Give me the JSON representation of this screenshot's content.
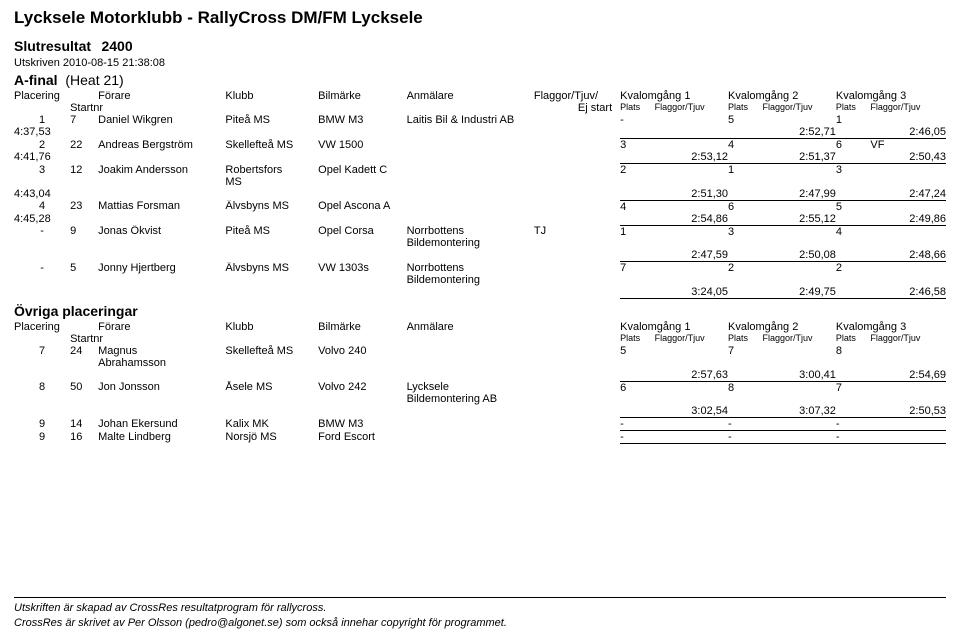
{
  "header": {
    "title": "Lycksele Motorklubb - RallyCross DM/FM Lycksele",
    "subtitle1": "Slutresultat",
    "subtitle2": "2400",
    "printed": "Utskriven 2010-08-15 21:38:08",
    "heat_label": "A-final",
    "heat_paren": "(Heat   21)"
  },
  "cols": {
    "plac": "Placering",
    "startnr": "Startnr",
    "driver": "Förare",
    "klubb": "Klubb",
    "bil": "Bilmärke",
    "anm": "Anmälare",
    "flag": "Flaggor/Tjuv/",
    "ejstart": "Ej start",
    "k1": "Kvalomgång 1",
    "k2": "Kvalomgång 2",
    "k3": "Kvalomgång 3",
    "plats": "Plats",
    "ft": "Flaggor/Tjuv"
  },
  "rows": [
    {
      "pl": "1",
      "st": "7",
      "dr": "Daniel Wikgren",
      "kl": "Piteå MS",
      "bm": "BMW M3",
      "an": "Laitis Bil & Industri AB",
      "fl": "",
      "k1p": "-",
      "k2p": "5",
      "k3p": "1",
      "k3f": "",
      "t": "4:37,53",
      "t1": "",
      "t2": "2:52,71",
      "t3": "2:46,05"
    },
    {
      "pl": "2",
      "st": "22",
      "dr": "Andreas Bergström",
      "kl": "Skellefteå MS",
      "bm": "VW 1500",
      "an": "",
      "fl": "",
      "k1p": "3",
      "k2p": "4",
      "k3p": "6",
      "k3f": "VF",
      "t": "4:41,76",
      "t1": "2:53,12",
      "t2": "2:51,37",
      "t3": "2:50,43"
    },
    {
      "pl": "3",
      "st": "12",
      "dr": "Joakim Andersson",
      "kl": "Robertsfors MS",
      "bm": "Opel Kadett C",
      "an": "",
      "fl": "",
      "k1p": "2",
      "k2p": "1",
      "k3p": "3",
      "k3f": "",
      "t": "4:43,04",
      "t1": "2:51,30",
      "t2": "2:47,99",
      "t3": "2:47,24"
    },
    {
      "pl": "4",
      "st": "23",
      "dr": "Mattias Forsman",
      "kl": "Älvsbyns MS",
      "bm": "Opel Ascona A",
      "an": "",
      "fl": "",
      "k1p": "4",
      "k2p": "6",
      "k3p": "5",
      "k3f": "",
      "t": "4:45,28",
      "t1": "2:54,86",
      "t2": "2:55,12",
      "t3": "2:49,86"
    },
    {
      "pl": "-",
      "st": "9",
      "dr": "Jonas Ökvist",
      "kl": "Piteå MS",
      "bm": "Opel Corsa",
      "an": "Norrbottens Bildemontering",
      "fl": "TJ",
      "k1p": "1",
      "k2p": "3",
      "k3p": "4",
      "k3f": "",
      "t": "",
      "t1": "2:47,59",
      "t2": "2:50,08",
      "t3": "2:48,66"
    },
    {
      "pl": "-",
      "st": "5",
      "dr": "Jonny Hjertberg",
      "kl": "Älvsbyns MS",
      "bm": "VW 1303s",
      "an": "Norrbottens Bildemontering",
      "fl": "",
      "k1p": "7",
      "k2p": "2",
      "k3p": "2",
      "k3f": "",
      "t": "",
      "t1": "3:24,05",
      "t2": "2:49,75",
      "t3": "2:46,58"
    }
  ],
  "ovriga_label": "Övriga placeringar",
  "ovriga": [
    {
      "pl": "7",
      "st": "24",
      "dr": "Magnus Abrahamsson",
      "kl": "Skellefteå MS",
      "bm": "Volvo 240",
      "an": "",
      "k1p": "5",
      "k2p": "7",
      "k3p": "8",
      "t": "",
      "t1": "2:57,63",
      "t2": "3:00,41",
      "t3": "2:54,69"
    },
    {
      "pl": "8",
      "st": "50",
      "dr": "Jon Jonsson",
      "kl": "Åsele MS",
      "bm": "Volvo 242",
      "an": "Lycksele Bildemontering AB",
      "k1p": "6",
      "k2p": "8",
      "k3p": "7",
      "t": "",
      "t1": "3:02,54",
      "t2": "3:07,32",
      "t3": "2:50,53"
    },
    {
      "pl": "9",
      "st": "14",
      "dr": "Johan Ekersund",
      "kl": "Kalix MK",
      "bm": "BMW M3",
      "an": "",
      "k1p": "-",
      "k2p": "-",
      "k3p": "-",
      "t": "",
      "t1": "",
      "t2": "",
      "t3": ""
    },
    {
      "pl": "9",
      "st": "16",
      "dr": "Malte Lindberg",
      "kl": "Norsjö MS",
      "bm": "Ford Escort",
      "an": "",
      "k1p": "-",
      "k2p": "-",
      "k3p": "-",
      "t": "",
      "t1": "",
      "t2": "",
      "t3": ""
    }
  ],
  "footer": {
    "l1": "Utskriften är skapad av CrossRes resultatprogram för rallycross.",
    "l2": "CrossRes är skrivet av Per Olsson (pedro@algonet.se) som också innehar copyright för programmet."
  }
}
